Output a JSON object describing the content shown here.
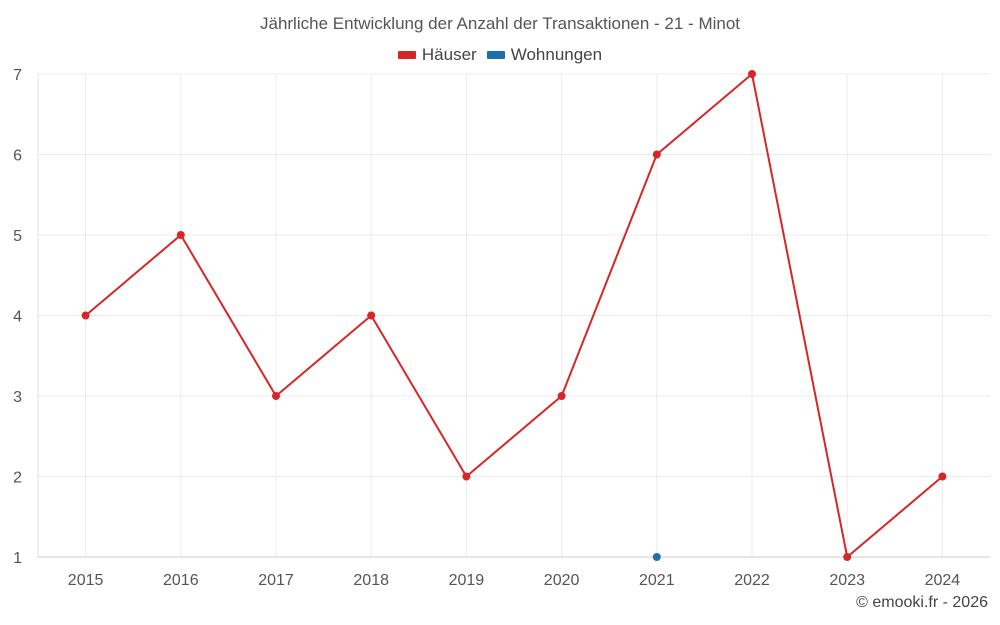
{
  "chart_data": {
    "type": "line",
    "title": "Jährliche Entwicklung der Anzahl der Transaktionen - 21 - Minot",
    "categories": [
      "2015",
      "2016",
      "2017",
      "2018",
      "2019",
      "2020",
      "2021",
      "2022",
      "2023",
      "2024"
    ],
    "series": [
      {
        "name": "Häuser",
        "color": "#d62728",
        "values": [
          4,
          5,
          3,
          4,
          2,
          3,
          6,
          7,
          1,
          2
        ]
      },
      {
        "name": "Wohnungen",
        "color": "#1f6fad",
        "values": [
          null,
          null,
          null,
          null,
          null,
          null,
          1,
          null,
          null,
          null
        ]
      }
    ],
    "ylim": [
      1,
      7
    ],
    "yticks": [
      "1",
      "2",
      "3",
      "4",
      "5",
      "6",
      "7"
    ],
    "grid": true,
    "legend_position": "top-center"
  },
  "credit": "© emooki.fr - 2026"
}
